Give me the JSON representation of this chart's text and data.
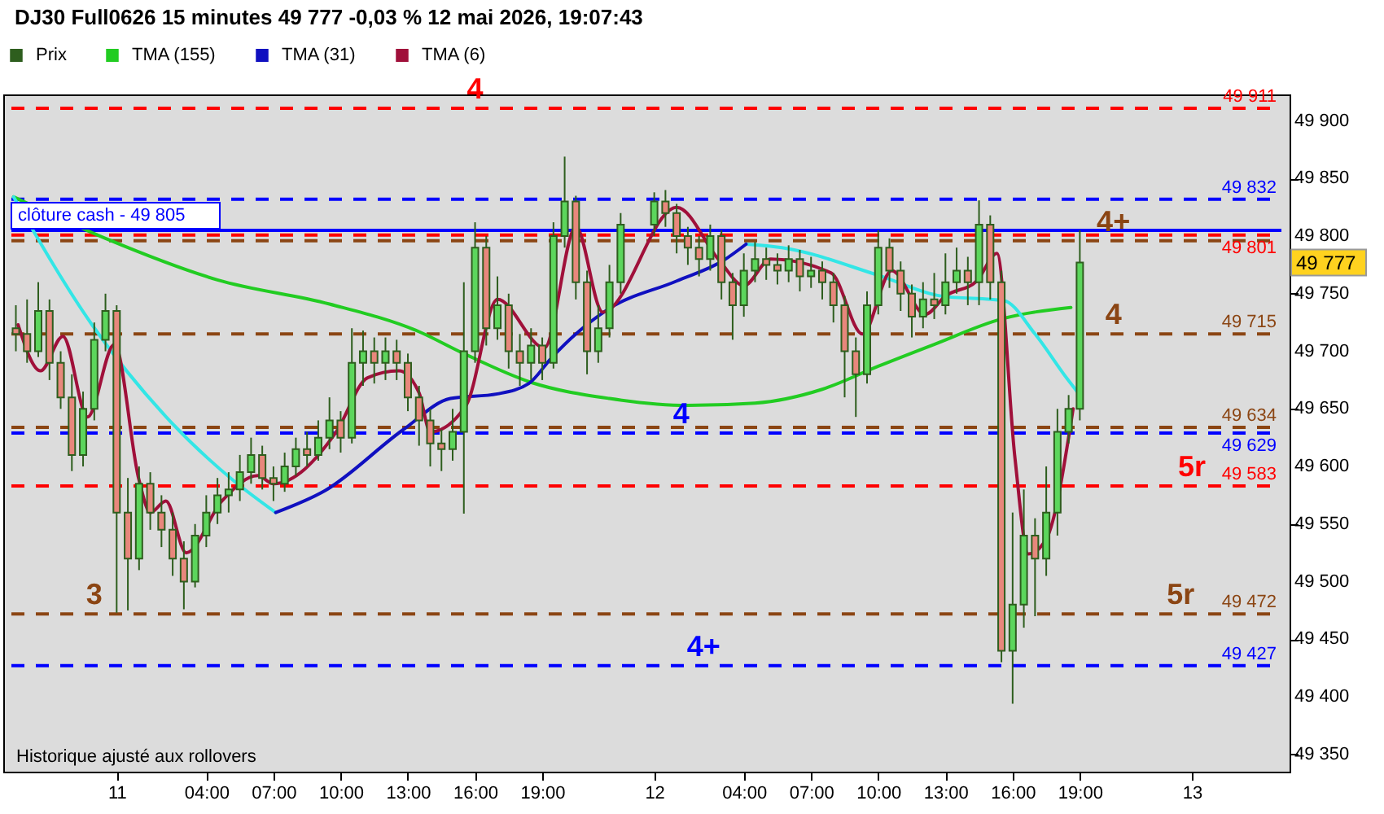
{
  "chart_data": {
    "type": "candlestick",
    "title": "DJ30 Full0626 15 minutes 49 777 -0,03 % 12 mai 2026, 19:07:43",
    "xlim": [
      "2026-05-10T19:18",
      "2026-05-13T04:00"
    ],
    "ylim": [
      49335,
      49923
    ],
    "xticks": [
      {
        "value": "2026-05-11T00:00",
        "label": "11"
      },
      {
        "value": "2026-05-11T04:00",
        "label": "04:00"
      },
      {
        "value": "2026-05-11T07:00",
        "label": "07:00"
      },
      {
        "value": "2026-05-11T10:00",
        "label": "10:00"
      },
      {
        "value": "2026-05-11T13:00",
        "label": "13:00"
      },
      {
        "value": "2026-05-11T16:00",
        "label": "16:00"
      },
      {
        "value": "2026-05-11T19:00",
        "label": "19:00"
      },
      {
        "value": "2026-05-12T00:00",
        "label": "12"
      },
      {
        "value": "2026-05-12T04:00",
        "label": "04:00"
      },
      {
        "value": "2026-05-12T07:00",
        "label": "07:00"
      },
      {
        "value": "2026-05-12T10:00",
        "label": "10:00"
      },
      {
        "value": "2026-05-12T13:00",
        "label": "13:00"
      },
      {
        "value": "2026-05-12T16:00",
        "label": "16:00"
      },
      {
        "value": "2026-05-12T19:00",
        "label": "19:00"
      },
      {
        "value": "2026-05-13T00:00",
        "label": "13"
      }
    ],
    "yticks": [
      {
        "value": 49350,
        "label": "49 350"
      },
      {
        "value": 49400,
        "label": "49 400"
      },
      {
        "value": 49450,
        "label": "49 450"
      },
      {
        "value": 49500,
        "label": "49 500"
      },
      {
        "value": 49550,
        "label": "49 550"
      },
      {
        "value": 49600,
        "label": "49 600"
      },
      {
        "value": 49650,
        "label": "49 650"
      },
      {
        "value": 49700,
        "label": "49 700"
      },
      {
        "value": 49750,
        "label": "49 750"
      },
      {
        "value": 49800,
        "label": "49 800"
      },
      {
        "value": 49850,
        "label": "49 850"
      },
      {
        "value": 49900,
        "label": "49 900"
      }
    ],
    "legend": "top left",
    "series": [
      {
        "name": "Prix",
        "type": "candlestick",
        "color": "#2e5e1e",
        "x": [
          "2026-05-10T19:30",
          "2026-05-10T20:00",
          "2026-05-10T20:30",
          "2026-05-10T21:00",
          "2026-05-10T21:30",
          "2026-05-10T22:00",
          "2026-05-10T22:30",
          "2026-05-10T23:00",
          "2026-05-10T23:30",
          "2026-05-11T00:00",
          "2026-05-11T00:30",
          "2026-05-11T01:00",
          "2026-05-11T01:30",
          "2026-05-11T02:00",
          "2026-05-11T02:30",
          "2026-05-11T03:00",
          "2026-05-11T03:30",
          "2026-05-11T04:00",
          "2026-05-11T04:30",
          "2026-05-11T05:00",
          "2026-05-11T05:30",
          "2026-05-11T06:00",
          "2026-05-11T06:30",
          "2026-05-11T07:00",
          "2026-05-11T07:30",
          "2026-05-11T08:00",
          "2026-05-11T08:30",
          "2026-05-11T09:00",
          "2026-05-11T09:30",
          "2026-05-11T10:00",
          "2026-05-11T10:30",
          "2026-05-11T11:00",
          "2026-05-11T11:30",
          "2026-05-11T12:00",
          "2026-05-11T12:30",
          "2026-05-11T13:00",
          "2026-05-11T13:30",
          "2026-05-11T14:00",
          "2026-05-11T14:30",
          "2026-05-11T15:00",
          "2026-05-11T15:30",
          "2026-05-11T16:00",
          "2026-05-11T16:30",
          "2026-05-11T17:00",
          "2026-05-11T17:30",
          "2026-05-11T18:00",
          "2026-05-11T18:30",
          "2026-05-11T19:00",
          "2026-05-11T19:30",
          "2026-05-11T20:00",
          "2026-05-11T20:30",
          "2026-05-11T21:00",
          "2026-05-11T21:30",
          "2026-05-11T22:00",
          "2026-05-11T22:30",
          "2026-05-12T00:00",
          "2026-05-12T00:30",
          "2026-05-12T01:00",
          "2026-05-12T01:30",
          "2026-05-12T02:00",
          "2026-05-12T02:30",
          "2026-05-12T03:00",
          "2026-05-12T03:30",
          "2026-05-12T04:00",
          "2026-05-12T04:30",
          "2026-05-12T05:00",
          "2026-05-12T05:30",
          "2026-05-12T06:00",
          "2026-05-12T06:30",
          "2026-05-12T07:00",
          "2026-05-12T07:30",
          "2026-05-12T08:00",
          "2026-05-12T08:30",
          "2026-05-12T09:00",
          "2026-05-12T09:30",
          "2026-05-12T10:00",
          "2026-05-12T10:30",
          "2026-05-12T11:00",
          "2026-05-12T11:30",
          "2026-05-12T12:00",
          "2026-05-12T12:30",
          "2026-05-12T13:00",
          "2026-05-12T13:30",
          "2026-05-12T14:00",
          "2026-05-12T14:30",
          "2026-05-12T15:00",
          "2026-05-12T15:30",
          "2026-05-12T16:00",
          "2026-05-12T16:30",
          "2026-05-12T17:00",
          "2026-05-12T17:30",
          "2026-05-12T18:00",
          "2026-05-12T18:30",
          "2026-05-12T19:00"
        ],
        "ohlc": [
          [
            49720,
            49740,
            49700,
            49715
          ],
          [
            49715,
            49745,
            49690,
            49700
          ],
          [
            49700,
            49760,
            49695,
            49735
          ],
          [
            49735,
            49745,
            49675,
            49690
          ],
          [
            49690,
            49700,
            49650,
            49660
          ],
          [
            49660,
            49680,
            49596,
            49610
          ],
          [
            49610,
            49665,
            49600,
            49650
          ],
          [
            49650,
            49725,
            49640,
            49710
          ],
          [
            49710,
            49750,
            49700,
            49735
          ],
          [
            49735,
            49740,
            49473,
            49560
          ],
          [
            49560,
            49590,
            49475,
            49520
          ],
          [
            49520,
            49600,
            49510,
            49585
          ],
          [
            49585,
            49595,
            49545,
            49560
          ],
          [
            49560,
            49575,
            49530,
            49545
          ],
          [
            49545,
            49560,
            49505,
            49520
          ],
          [
            49520,
            49535,
            49476,
            49500
          ],
          [
            49500,
            49550,
            49495,
            49540
          ],
          [
            49540,
            49575,
            49530,
            49560
          ],
          [
            49560,
            49590,
            49550,
            49575
          ],
          [
            49575,
            49595,
            49560,
            49580
          ],
          [
            49580,
            49610,
            49570,
            49595
          ],
          [
            49595,
            49625,
            49585,
            49610
          ],
          [
            49610,
            49618,
            49580,
            49590
          ],
          [
            49590,
            49600,
            49570,
            49585
          ],
          [
            49585,
            49612,
            49578,
            49600
          ],
          [
            49600,
            49625,
            49592,
            49615
          ],
          [
            49615,
            49630,
            49600,
            49610
          ],
          [
            49610,
            49640,
            49605,
            49625
          ],
          [
            49625,
            49660,
            49615,
            49640
          ],
          [
            49640,
            49648,
            49612,
            49625
          ],
          [
            49625,
            49720,
            49620,
            49690
          ],
          [
            49690,
            49718,
            49670,
            49700
          ],
          [
            49700,
            49712,
            49672,
            49690
          ],
          [
            49690,
            49712,
            49675,
            49700
          ],
          [
            49700,
            49710,
            49675,
            49690
          ],
          [
            49690,
            49698,
            49648,
            49660
          ],
          [
            49660,
            49670,
            49618,
            49640
          ],
          [
            49640,
            49650,
            49600,
            49620
          ],
          [
            49620,
            49632,
            49596,
            49615
          ],
          [
            49615,
            49650,
            49605,
            49630
          ],
          [
            49630,
            49760,
            49559,
            49700
          ],
          [
            49700,
            49812,
            49690,
            49790
          ],
          [
            49790,
            49800,
            49705,
            49720
          ],
          [
            49720,
            49765,
            49710,
            49740
          ],
          [
            49740,
            49750,
            49685,
            49700
          ],
          [
            49700,
            49715,
            49670,
            49690
          ],
          [
            49690,
            49720,
            49675,
            49705
          ],
          [
            49705,
            49712,
            49675,
            49690
          ],
          [
            49690,
            49812,
            49685,
            49800
          ],
          [
            49800,
            49869,
            49790,
            49830
          ],
          [
            49830,
            49835,
            49745,
            49760
          ],
          [
            49760,
            49770,
            49680,
            49700
          ],
          [
            49700,
            49740,
            49690,
            49720
          ],
          [
            49720,
            49775,
            49712,
            49760
          ],
          [
            49760,
            49820,
            49750,
            49810
          ],
          [
            49810,
            49838,
            49800,
            49830
          ],
          [
            49830,
            49840,
            49808,
            49820
          ],
          [
            49820,
            49828,
            49785,
            49800
          ],
          [
            49800,
            49808,
            49775,
            49790
          ],
          [
            49790,
            49800,
            49765,
            49780
          ],
          [
            49780,
            49810,
            49770,
            49800
          ],
          [
            49800,
            49805,
            49745,
            49760
          ],
          [
            49760,
            49768,
            49710,
            49740
          ],
          [
            49740,
            49785,
            49730,
            49770
          ],
          [
            49770,
            49795,
            49760,
            49780
          ],
          [
            49780,
            49790,
            49762,
            49775
          ],
          [
            49775,
            49785,
            49758,
            49770
          ],
          [
            49770,
            49792,
            49760,
            49780
          ],
          [
            49780,
            49788,
            49752,
            49765
          ],
          [
            49765,
            49782,
            49755,
            49770
          ],
          [
            49770,
            49778,
            49745,
            49760
          ],
          [
            49760,
            49768,
            49725,
            49740
          ],
          [
            49740,
            49748,
            49660,
            49700
          ],
          [
            49700,
            49712,
            49643,
            49680
          ],
          [
            49680,
            49752,
            49672,
            49740
          ],
          [
            49740,
            49805,
            49732,
            49790
          ],
          [
            49790,
            49798,
            49755,
            49770
          ],
          [
            49770,
            49778,
            49735,
            49750
          ],
          [
            49750,
            49758,
            49712,
            49730
          ],
          [
            49730,
            49760,
            49720,
            49745
          ],
          [
            49745,
            49768,
            49728,
            49740
          ],
          [
            49740,
            49785,
            49732,
            49760
          ],
          [
            49760,
            49790,
            49750,
            49770
          ],
          [
            49770,
            49782,
            49740,
            49760
          ],
          [
            49760,
            49831,
            49740,
            49810
          ],
          [
            49810,
            49818,
            49745,
            49760
          ],
          [
            49760,
            49770,
            49430,
            49440
          ],
          [
            49440,
            49560,
            49394,
            49480
          ],
          [
            49480,
            49580,
            49460,
            49540
          ],
          [
            49540,
            49555,
            49470,
            49520
          ],
          [
            49520,
            49600,
            49505,
            49560
          ],
          [
            49560,
            49650,
            49540,
            49630
          ],
          [
            49630,
            49662,
            49620,
            49650
          ],
          [
            49650,
            49805,
            49640,
            49777
          ]
        ],
        "colors": [
          "#e8877c",
          "#e8877c",
          "#5cd65c",
          "#e8877c",
          "#e8877c",
          "#e8877c",
          "#5cd65c",
          "#5cd65c",
          "#5cd65c",
          "#e8877c",
          "#e8877c",
          "#5cd65c",
          "#e8877c",
          "#e8877c",
          "#e8877c",
          "#e8877c",
          "#5cd65c",
          "#5cd65c",
          "#5cd65c",
          "#5cd65c",
          "#5cd65c",
          "#5cd65c",
          "#e8877c",
          "#e8877c",
          "#5cd65c",
          "#5cd65c",
          "#e8877c",
          "#5cd65c",
          "#5cd65c",
          "#e8877c",
          "#5cd65c",
          "#5cd65c",
          "#e8877c",
          "#5cd65c",
          "#e8877c",
          "#e8877c",
          "#e8877c",
          "#e8877c",
          "#e8877c",
          "#5cd65c",
          "#5cd65c",
          "#5cd65c",
          "#e8877c",
          "#5cd65c",
          "#e8877c",
          "#e8877c",
          "#5cd65c",
          "#e8877c",
          "#5cd65c",
          "#5cd65c",
          "#e8877c",
          "#e8877c",
          "#5cd65c",
          "#5cd65c",
          "#5cd65c",
          "#5cd65c",
          "#e8877c",
          "#e8877c",
          "#e8877c",
          "#e8877c",
          "#5cd65c",
          "#e8877c",
          "#e8877c",
          "#5cd65c",
          "#5cd65c",
          "#e8877c",
          "#e8877c",
          "#5cd65c",
          "#e8877c",
          "#5cd65c",
          "#e8877c",
          "#e8877c",
          "#e8877c",
          "#e8877c",
          "#5cd65c",
          "#5cd65c",
          "#e8877c",
          "#e8877c",
          "#e8877c",
          "#5cd65c",
          "#e8877c",
          "#5cd65c",
          "#5cd65c",
          "#e8877c",
          "#5cd65c",
          "#e8877c",
          "#e8877c",
          "#5cd65c",
          "#5cd65c",
          "#e8877c",
          "#5cd65c",
          "#5cd65c",
          "#5cd65c",
          "#5cd65c"
        ]
      },
      {
        "name": "TMA (155)",
        "type": "line",
        "color": "#22cc22",
        "x": [
          "2026-05-10T19:24",
          "2026-05-10T23:30",
          "2026-05-11T04:30",
          "2026-05-11T09:30",
          "2026-05-11T13:30",
          "2026-05-11T15:30",
          "2026-05-11T18:30",
          "2026-05-11T22:00",
          "2026-05-12T01:30",
          "2026-05-12T04:30",
          "2026-05-12T07:30",
          "2026-05-12T10:00",
          "2026-05-12T12:30",
          "2026-05-12T15:30",
          "2026-05-12T18:36"
        ],
        "values": [
          49834,
          49798,
          49762,
          49741,
          49717,
          49698,
          49673,
          49659,
          49653,
          49655,
          49667,
          49687,
          49706,
          49728,
          49738
        ]
      },
      {
        "type": "line",
        "color": "#33e6e6",
        "x": [
          "2026-05-10T19:24",
          "2026-05-10T22:54",
          "2026-05-11T02:24",
          "2026-05-11T05:12",
          "2026-05-11T07:06",
          "2026-05-11T17:00",
          "2026-05-12T04:06",
          "2026-05-12T05:42",
          "2026-05-12T10:00",
          "2026-05-12T12:48",
          "2026-05-12T15:36",
          "2026-05-12T17:00",
          "2026-05-12T18:24",
          "2026-05-12T19:00"
        ],
        "values": [
          49834,
          49723,
          49639,
          49588,
          49560,
          null,
          49793,
          49790,
          49766,
          49748,
          49744,
          49715,
          49677,
          49662
        ]
      },
      {
        "name": "TMA (31)",
        "type": "line",
        "color": "#1010c0",
        "x": [
          "2026-05-11T07:06",
          "2026-05-11T09:18",
          "2026-05-11T12:48",
          "2026-05-11T14:54",
          "2026-05-11T17:00",
          "2026-05-11T18:24",
          "2026-05-11T19:24",
          "2026-05-11T20:30",
          "2026-05-11T21:54",
          "2026-05-12T01:00",
          "2026-05-12T03:06",
          "2026-05-12T04:06"
        ],
        "values": [
          49560,
          49579,
          49632,
          49659,
          49663,
          49672,
          49694,
          49715,
          49736,
          49761,
          49779,
          49793
        ]
      },
      {
        "name": "TMA (6)",
        "type": "line",
        "color": "#a0103a",
        "x": [
          "2026-05-10T19:36",
          "2026-05-10T20:36",
          "2026-05-10T21:36",
          "2026-05-10T22:42",
          "2026-05-10T23:54",
          "2026-05-11T01:00",
          "2026-05-11T01:30",
          "2026-05-11T02:12",
          "2026-05-11T03:06",
          "2026-05-11T04:42",
          "2026-05-11T06:18",
          "2026-05-11T07:00",
          "2026-05-11T09:48",
          "2026-05-11T11:12",
          "2026-05-11T12:36",
          "2026-05-11T13:30",
          "2026-05-11T14:00",
          "2026-05-11T15:36",
          "2026-05-11T17:00",
          "2026-05-11T19:06",
          "2026-05-11T20:30",
          "2026-05-11T21:42",
          "2026-05-12T01:00",
          "2026-05-12T02:54",
          "2026-05-12T04:00",
          "2026-05-12T05:12",
          "2026-05-12T07:54",
          "2026-05-12T09:18",
          "2026-05-12T10:36",
          "2026-05-12T12:06",
          "2026-05-12T13:00",
          "2026-05-12T14:24",
          "2026-05-12T15:18",
          "2026-05-12T16:06",
          "2026-05-12T16:42",
          "2026-05-12T17:30",
          "2026-05-12T18:42"
        ],
        "values": [
          49723,
          49683,
          49713,
          49643,
          49706,
          49588,
          49560,
          49570,
          49525,
          49570,
          49592,
          49585,
          49630,
          49677,
          49683,
          49664,
          49630,
          49653,
          49745,
          49703,
          49808,
          49734,
          49825,
          49779,
          49757,
          49780,
          49768,
          49715,
          49770,
          49732,
          49748,
          49761,
          49785,
          49608,
          49524,
          49537,
          49650
        ]
      }
    ],
    "ref_lines": [
      {
        "axis": "y",
        "value": 49911,
        "label": "49 911",
        "color": "#ff0000",
        "line_style": "dashed"
      },
      {
        "axis": "y",
        "value": 49832,
        "label": "49 832",
        "color": "#0000ff",
        "line_style": "dashed"
      },
      {
        "axis": "y",
        "value": 49805,
        "label": "clôture cash -  49 805",
        "color": "#0000ff",
        "line_style": "solid"
      },
      {
        "axis": "y",
        "value": 49801,
        "label": "49 801",
        "color": "#ff0000",
        "line_style": "dashed"
      },
      {
        "axis": "y",
        "value": 49796,
        "color": "#8b4513",
        "line_style": "dashed"
      },
      {
        "axis": "y",
        "value": 49715,
        "label": "49 715",
        "color": "#8b4513",
        "line_style": "dashed"
      },
      {
        "axis": "y",
        "value": 49634,
        "label": "49 634",
        "color": "#8b4513",
        "line_style": "dashed"
      },
      {
        "axis": "y",
        "value": 49629,
        "label": "49 629",
        "color": "#0000ff",
        "line_style": "dashed"
      },
      {
        "axis": "y",
        "value": 49583,
        "label": "49 583",
        "color": "#ff0000",
        "line_style": "dashed"
      },
      {
        "axis": "y",
        "value": 49472,
        "label": "49 472",
        "color": "#8b4513",
        "line_style": "dashed"
      },
      {
        "axis": "y",
        "value": 49427,
        "label": "49 427",
        "color": "#0000ff",
        "line_style": "dashed"
      }
    ],
    "annotations": [
      {
        "text": "4",
        "x": "2026-05-11T16:00",
        "y": 49911
      },
      {
        "text": "4+",
        "x": "2026-05-12T20:30",
        "y": 49796
      },
      {
        "text": "4",
        "x": "2026-05-12T20:30",
        "y": 49715
      },
      {
        "text": "4",
        "x": "2026-05-12T01:12",
        "y": 49629
      },
      {
        "text": "5r",
        "x": "2026-05-13T00:00",
        "y": 49583
      },
      {
        "text": "3",
        "x": "2026-05-10T23:00",
        "y": 49472
      },
      {
        "text": "5r",
        "x": "2026-05-12T23:30",
        "y": 49472
      },
      {
        "text": "4+",
        "x": "2026-05-12T02:12",
        "y": 49427
      },
      "49 777",
      "Historique ajusté aux rollovers"
    ]
  }
}
